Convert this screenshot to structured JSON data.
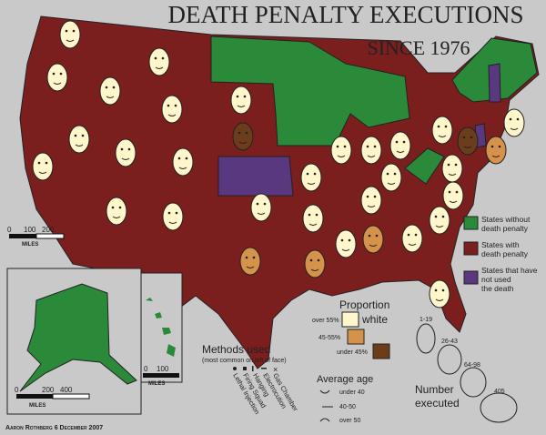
{
  "header": {
    "title": "Death Penalty Executions",
    "subtitle": "Since 1976"
  },
  "legend": {
    "status": [
      "States without death penalty",
      "States with death penalty",
      "States that have not used the death penalty"
    ]
  },
  "proportion": {
    "title": "Proportion",
    "word": "white",
    "items": [
      "over 55%",
      "45-55%",
      "under 45%"
    ]
  },
  "methods": {
    "title": "Methods used",
    "note": "(most common on left of face)",
    "items": [
      "Lethal Injection",
      "Firing Squad",
      "Hanging",
      "Electrocution",
      "Gas Chamber"
    ]
  },
  "age": {
    "title": "Average age",
    "items": [
      "under 40",
      "40-50",
      "over 50"
    ]
  },
  "executed": {
    "title": [
      "Number",
      "executed"
    ],
    "items": [
      "1-19",
      "26-43",
      "64-98",
      "405"
    ]
  },
  "scales": {
    "main": [
      "0",
      "100",
      "200",
      "MILES"
    ],
    "alaska": [
      "0",
      "200",
      "400",
      "MILES"
    ],
    "hawaii": [
      "0",
      "100",
      "MILES"
    ]
  },
  "credit": "Aaron Rothberg 6 December 2007"
}
